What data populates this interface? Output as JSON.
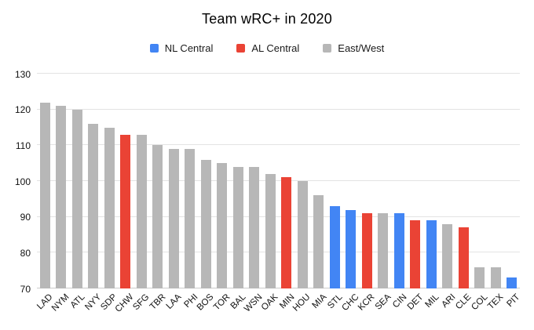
{
  "chart_data": {
    "type": "bar",
    "title": "Team wRC+ in 2020",
    "xlabel": "",
    "ylabel": "",
    "ylim": [
      70,
      130
    ],
    "yticks": [
      70,
      80,
      90,
      100,
      110,
      120,
      130
    ],
    "grid": true,
    "legend_position": "top",
    "legend": [
      {
        "label": "NL Central",
        "color": "#4285f4"
      },
      {
        "label": "AL Central",
        "color": "#ea4335"
      },
      {
        "label": "East/West",
        "color": "#b7b7b7"
      }
    ],
    "categories": [
      "LAD",
      "NYM",
      "ATL",
      "NYY",
      "SDP",
      "CHW",
      "SFG",
      "TBR",
      "LAA",
      "PHI",
      "BOS",
      "TOR",
      "BAL",
      "WSN",
      "OAK",
      "MIN",
      "HOU",
      "MIA",
      "STL",
      "CHC",
      "KCR",
      "SEA",
      "CIN",
      "DET",
      "MIL",
      "ARI",
      "CLE",
      "COL",
      "TEX",
      "PIT"
    ],
    "values": [
      122,
      121,
      120,
      116,
      115,
      113,
      113,
      110,
      109,
      109,
      106,
      105,
      104,
      104,
      102,
      101,
      100,
      96,
      93,
      92,
      91,
      91,
      91,
      89,
      89,
      88,
      87,
      76,
      76,
      73
    ],
    "groups": [
      "East/West",
      "East/West",
      "East/West",
      "East/West",
      "East/West",
      "AL Central",
      "East/West",
      "East/West",
      "East/West",
      "East/West",
      "East/West",
      "East/West",
      "East/West",
      "East/West",
      "East/West",
      "AL Central",
      "East/West",
      "East/West",
      "NL Central",
      "NL Central",
      "AL Central",
      "East/West",
      "NL Central",
      "AL Central",
      "NL Central",
      "East/West",
      "AL Central",
      "East/West",
      "East/West",
      "NL Central"
    ]
  }
}
